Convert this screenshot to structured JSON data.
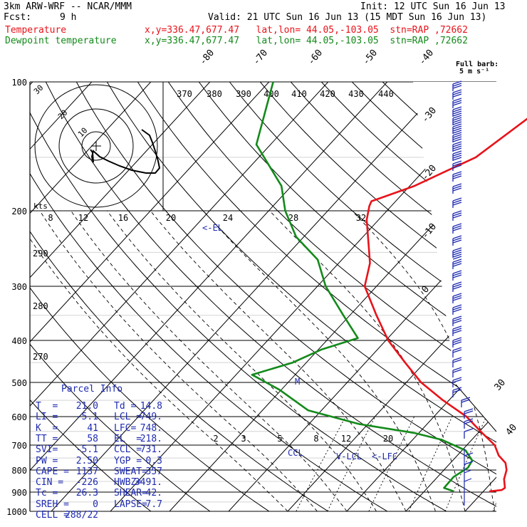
{
  "header": {
    "model": "3km ARW-WRF -- NCAR/MMM",
    "fcst_label": "Fcst:",
    "fcst_value": "9 h",
    "init": "Init: 12 UTC Sun 16 Jun 13",
    "valid": "Valid: 21 UTC Sun 16 Jun 13 (15 MDT Sun 16 Jun 13)",
    "temp_label": "Temperature",
    "dew_label": "Dewpoint temperature",
    "temp_loc": "x,y=336.47,677.47   lat,lon= 44.05,-103.05  stn=RAP ,72662",
    "dew_loc": "x,y=336.47,677.47   lat,lon= 44.05,-103.05  stn=RAP ,72662"
  },
  "colors": {
    "temperature": "#e8131a",
    "dewpoint": "#138a1a",
    "annotation": "#1f2bb0",
    "hodograph": "#000000"
  },
  "barb_note": {
    "line1": "Full barb:",
    "line2": "5 m s⁻¹"
  },
  "parcel_info": {
    "title": "Parcel Info",
    "rows": [
      {
        "a": "T  =",
        "b": "21.0",
        "c": "Td =",
        "d": "14.8"
      },
      {
        "a": "LI =",
        "b": "-5.1",
        "c": "LCL =",
        "d": "749."
      },
      {
        "a": "K  =",
        "b": "41",
        "c": "LFC=",
        "d": "748."
      },
      {
        "a": "TT =",
        "b": "58",
        "c": "EL  =",
        "d": "218."
      },
      {
        "a": "SVI=",
        "b": "-5.1",
        "c": "CCL =",
        "d": "731."
      },
      {
        "a": "PW =",
        "b": "2.50",
        "c": "YGP =",
        "d": "0.3"
      },
      {
        "a": "CAPE =",
        "b": "1137",
        "c": "SWEAT=",
        "d": "357"
      },
      {
        "a": "CIN =",
        "b": "-226",
        "c": "HWBZ=",
        "d": "3491."
      },
      {
        "a": "Tc =",
        "b": "26.3",
        "c": "SHEAR=",
        "d": "42."
      },
      {
        "a": "SREH =",
        "b": "0",
        "c": "LAPSE=",
        "d": "7.7"
      },
      {
        "a": "CELL =",
        "b": "288/22",
        "c": "",
        "d": ""
      }
    ]
  },
  "chart_data": {
    "type": "line",
    "title": "",
    "xlabel": "",
    "ylabel": "",
    "y_scale": "log-pressure",
    "ylim_hpa": [
      1000,
      100
    ],
    "y_ticks": [
      "100",
      "200",
      "300",
      "400",
      "500",
      "600",
      "700",
      "800",
      "900",
      "1000"
    ],
    "isotherm_labels": [
      "-80",
      "-70",
      "-60",
      "-50",
      "-40",
      "-30",
      "-20",
      "-10",
      "0",
      "30",
      "40"
    ],
    "theta_labels": [
      "370",
      "380",
      "390",
      "400",
      "410",
      "420",
      "430",
      "440"
    ],
    "theta_left_labels": [
      "290",
      "280",
      "270"
    ],
    "mixing_ratio_top_labels": [
      "8",
      "12",
      "16",
      "20",
      "24",
      "28",
      "32"
    ],
    "mixing_ratio_low_labels": [
      "2",
      "3",
      "5",
      "8",
      "12",
      "20"
    ],
    "series": [
      {
        "name": "Temperature",
        "points": [
          [
            -28.0,
            100
          ],
          [
            -33.3,
            150
          ],
          [
            -39.2,
            175
          ],
          [
            -44.1,
            190
          ],
          [
            -43.7,
            195
          ],
          [
            -42.0,
            210
          ],
          [
            -37.8,
            240
          ],
          [
            -34.7,
            265
          ],
          [
            -32.0,
            300
          ],
          [
            -25.5,
            350
          ],
          [
            -19.6,
            400
          ],
          [
            -13.3,
            450
          ],
          [
            -7.5,
            500
          ],
          [
            -1.0,
            550
          ],
          [
            5.5,
            600
          ],
          [
            10.2,
            650
          ],
          [
            14.7,
            700
          ],
          [
            17.0,
            740
          ],
          [
            19.3,
            770
          ],
          [
            20.6,
            800
          ],
          [
            21.6,
            840
          ],
          [
            23.1,
            880
          ],
          [
            22.9,
            890
          ],
          [
            21.0,
            897
          ]
        ]
      },
      {
        "name": "Dewpoint temperature",
        "points": [
          [
            -79.3,
            100
          ],
          [
            -72.4,
            140
          ],
          [
            -61.7,
            175
          ],
          [
            -57.2,
            200
          ],
          [
            -51.3,
            230
          ],
          [
            -44.1,
            260
          ],
          [
            -38.6,
            300
          ],
          [
            -31.1,
            350
          ],
          [
            -25.1,
            395
          ],
          [
            -29.5,
            420
          ],
          [
            -32.3,
            450
          ],
          [
            -37.3,
            480
          ],
          [
            -30.3,
            520
          ],
          [
            -22.3,
            580
          ],
          [
            -11.4,
            625
          ],
          [
            -0.9,
            655
          ],
          [
            4.9,
            680
          ],
          [
            10.6,
            720
          ],
          [
            13.3,
            760
          ],
          [
            13.7,
            790
          ],
          [
            12.7,
            830
          ],
          [
            12.8,
            880
          ],
          [
            14.8,
            895
          ]
        ]
      }
    ],
    "annotations": [
      "<-EL",
      "M",
      "CCL",
      "V-LCL",
      "<-LFC"
    ],
    "hodograph": {
      "ring_labels": [
        "10",
        "20",
        "30"
      ],
      "speed_unit": "kts"
    }
  }
}
